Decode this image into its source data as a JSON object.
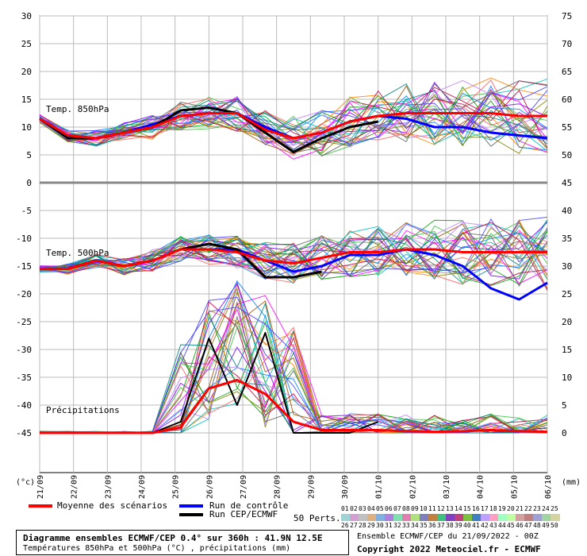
{
  "chart_data": {
    "type": "line",
    "x_ticks": [
      "21/09",
      "22/09",
      "23/09",
      "24/09",
      "25/09",
      "26/09",
      "27/09",
      "28/09",
      "29/09",
      "30/09",
      "01/10",
      "02/10",
      "03/10",
      "04/10",
      "05/10",
      "06/10"
    ],
    "left_axis": {
      "label": "(°c)",
      "ticks": [
        30,
        25,
        20,
        15,
        10,
        5,
        0,
        -5,
        -10,
        -15,
        -20,
        -25,
        -30,
        -35,
        -40,
        -45
      ]
    },
    "right_axis": {
      "label": "(mm)",
      "ticks_upper": [
        75,
        70,
        65,
        60,
        55,
        50
      ],
      "ticks_lower": [
        45,
        40,
        35,
        30,
        25,
        20,
        15,
        10,
        5,
        0
      ]
    },
    "panels": [
      {
        "name": "Temp. 850hPa",
        "mean": [
          11.5,
          8.5,
          8,
          9,
          10,
          12,
          12.5,
          12.5,
          9.5,
          8,
          9,
          11,
          12,
          12.5,
          12.5,
          12.5,
          12.5,
          12,
          12
        ],
        "control": [
          11.5,
          8.5,
          8,
          9,
          10.5,
          12,
          12.5,
          12.5,
          10,
          8,
          9,
          11,
          12,
          11.5,
          10,
          10,
          9,
          8.5,
          8
        ],
        "ecmwf": [
          11.5,
          8,
          8,
          9,
          10,
          13,
          13.5,
          12.5,
          9,
          5.5,
          8,
          10,
          11
        ],
        "ylim": [
          0,
          30
        ]
      },
      {
        "name": "Temp. 500hPa",
        "mean": [
          -15.5,
          -15.5,
          -14,
          -15,
          -14,
          -12,
          -12,
          -12.5,
          -14,
          -14.5,
          -13.5,
          -12.5,
          -12.5,
          -12,
          -12,
          -12.5,
          -12.5,
          -12.5,
          -12.5
        ],
        "control": [
          -15.5,
          -15.5,
          -14,
          -15,
          -14,
          -12,
          -12,
          -12,
          -14,
          -16,
          -15,
          -13,
          -13,
          -12,
          -13,
          -15,
          -19,
          -21,
          -18
        ],
        "ecmwf": [
          -15.5,
          -15.5,
          -14,
          -15,
          -14,
          -12,
          -11,
          -12,
          -17,
          -17,
          -16
        ],
        "ylim": [
          -45,
          0
        ]
      },
      {
        "name": "Précipitations",
        "mean": [
          0,
          0,
          0,
          0,
          0,
          1,
          8,
          9.5,
          7,
          2,
          0.5,
          0.5,
          0.5,
          0.3,
          0.2,
          0.3,
          0.5,
          0.3,
          0.2
        ],
        "ecmwf": [
          0,
          0,
          0,
          0,
          0,
          2,
          17,
          5,
          18,
          0,
          0,
          0,
          2
        ],
        "ylim": [
          0,
          45
        ]
      }
    ]
  },
  "legend": {
    "mean_label": "Moyenne des scénarios",
    "control_label": "Run de contrôle",
    "ecmwf_label": "Run CEP/ECMWF",
    "perts_label": "50 Perts.",
    "mean_color": "#ff0000",
    "control_color": "#0000ff",
    "ecmwf_color": "#000000"
  },
  "perts_row1": [
    "01",
    "02",
    "03",
    "04",
    "05",
    "06",
    "07",
    "08",
    "09",
    "10",
    "11",
    "12",
    "13",
    "14",
    "15",
    "16",
    "17",
    "18",
    "19",
    "20",
    "21",
    "22",
    "23",
    "24",
    "25"
  ],
  "perts_row2": [
    "26",
    "27",
    "28",
    "29",
    "30",
    "31",
    "32",
    "33",
    "34",
    "35",
    "36",
    "37",
    "38",
    "39",
    "40",
    "41",
    "42",
    "43",
    "44",
    "45",
    "46",
    "47",
    "48",
    "49",
    "50"
  ],
  "footer": {
    "title": "Diagramme ensembles ECMWF/CEP 0.4° sur 360h : 41.9N 12.5E",
    "subtitle": "Températures 850hPa et 500hPa (°C) , précipitations (mm)",
    "ensemble_info": "Ensemble ECMWF/CEP du 21/09/2022 - 00Z",
    "copyright": "Copyright 2022 Meteociel.fr - ECMWF"
  }
}
